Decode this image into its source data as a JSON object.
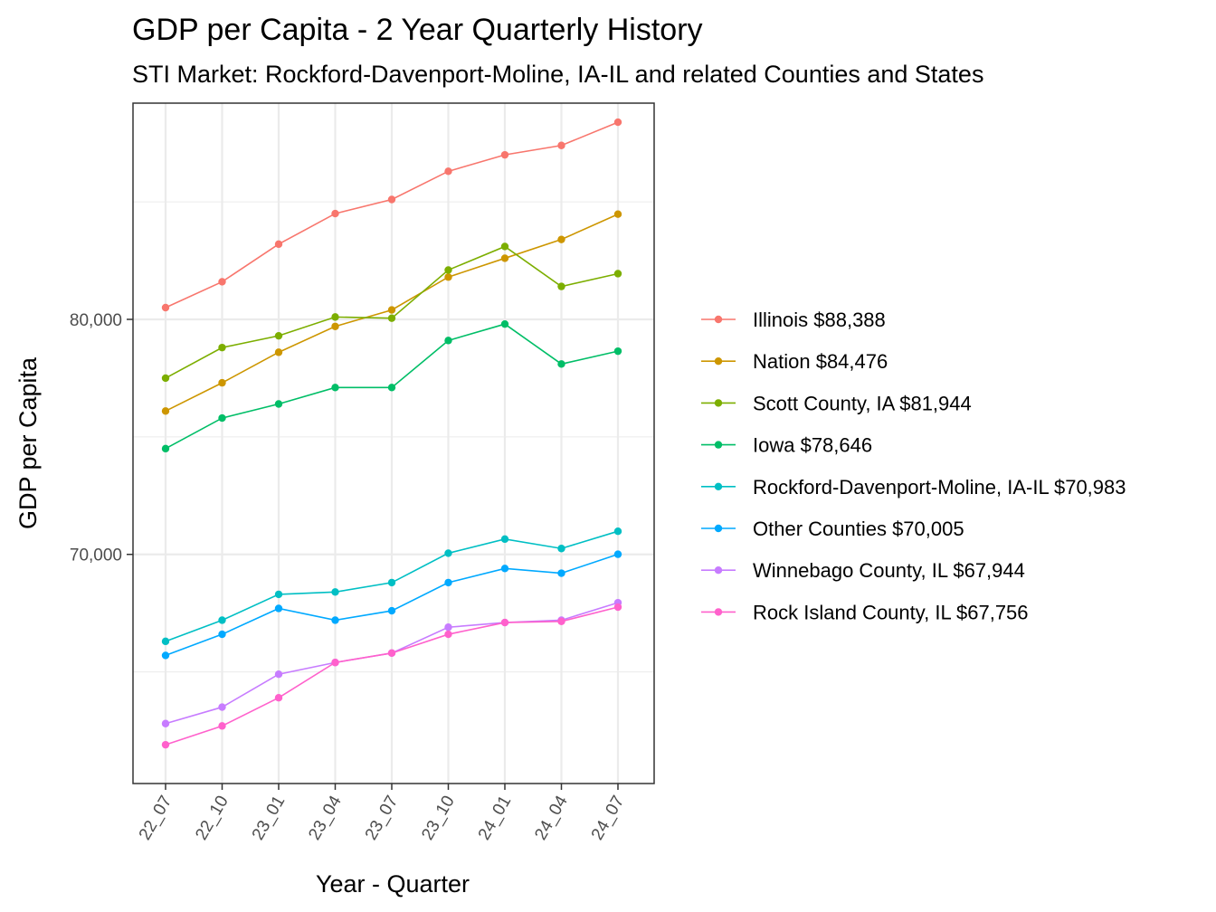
{
  "chart_data": {
    "type": "line",
    "title": "GDP per Capita - 2 Year Quarterly History",
    "subtitle": "STI Market: Rockford-Davenport-Moline, IA-IL and related Counties and States",
    "xlabel": "Year - Quarter",
    "ylabel": "GDP per Capita",
    "categories": [
      "22_07",
      "22_10",
      "23_01",
      "23_04",
      "23_07",
      "23_10",
      "24_01",
      "24_04",
      "24_07"
    ],
    "ylim": [
      60250,
      89200
    ],
    "yticks": [
      70000,
      80000
    ],
    "ytick_labels": [
      "70,000",
      "80,000"
    ],
    "grid": true,
    "legend_position": "right",
    "series": [
      {
        "name": "Illinois $88,388",
        "color": "#F8766D",
        "values": [
          80500,
          81600,
          83200,
          84500,
          85100,
          86300,
          87000,
          87400,
          88388
        ]
      },
      {
        "name": "Nation $84,476",
        "color": "#CD9600",
        "values": [
          76100,
          77300,
          78600,
          79700,
          80400,
          81800,
          82600,
          83400,
          84476
        ]
      },
      {
        "name": "Scott County, IA $81,944",
        "color": "#7CAE00",
        "values": [
          77500,
          78800,
          79300,
          80100,
          80050,
          82100,
          83100,
          81400,
          81944
        ]
      },
      {
        "name": "Iowa $78,646",
        "color": "#00BE67",
        "values": [
          74500,
          75800,
          76400,
          77100,
          77100,
          79100,
          79800,
          78100,
          78646
        ]
      },
      {
        "name": "Rockford-Davenport-Moline, IA-IL $70,983",
        "color": "#00BFC4",
        "values": [
          66300,
          67200,
          68300,
          68400,
          68800,
          70050,
          70650,
          70250,
          70983
        ]
      },
      {
        "name": "Other Counties $70,005",
        "color": "#00A9FF",
        "values": [
          65700,
          66600,
          67700,
          67200,
          67600,
          68800,
          69400,
          69200,
          70005
        ]
      },
      {
        "name": "Winnebago County, IL $67,944",
        "color": "#C77CFF",
        "values": [
          62800,
          63500,
          64900,
          65400,
          65800,
          66900,
          67100,
          67200,
          67944
        ]
      },
      {
        "name": "Rock Island County, IL $67,756",
        "color": "#FF61CC",
        "values": [
          61900,
          62700,
          63900,
          65400,
          65800,
          66600,
          67100,
          67150,
          67756
        ]
      }
    ]
  }
}
